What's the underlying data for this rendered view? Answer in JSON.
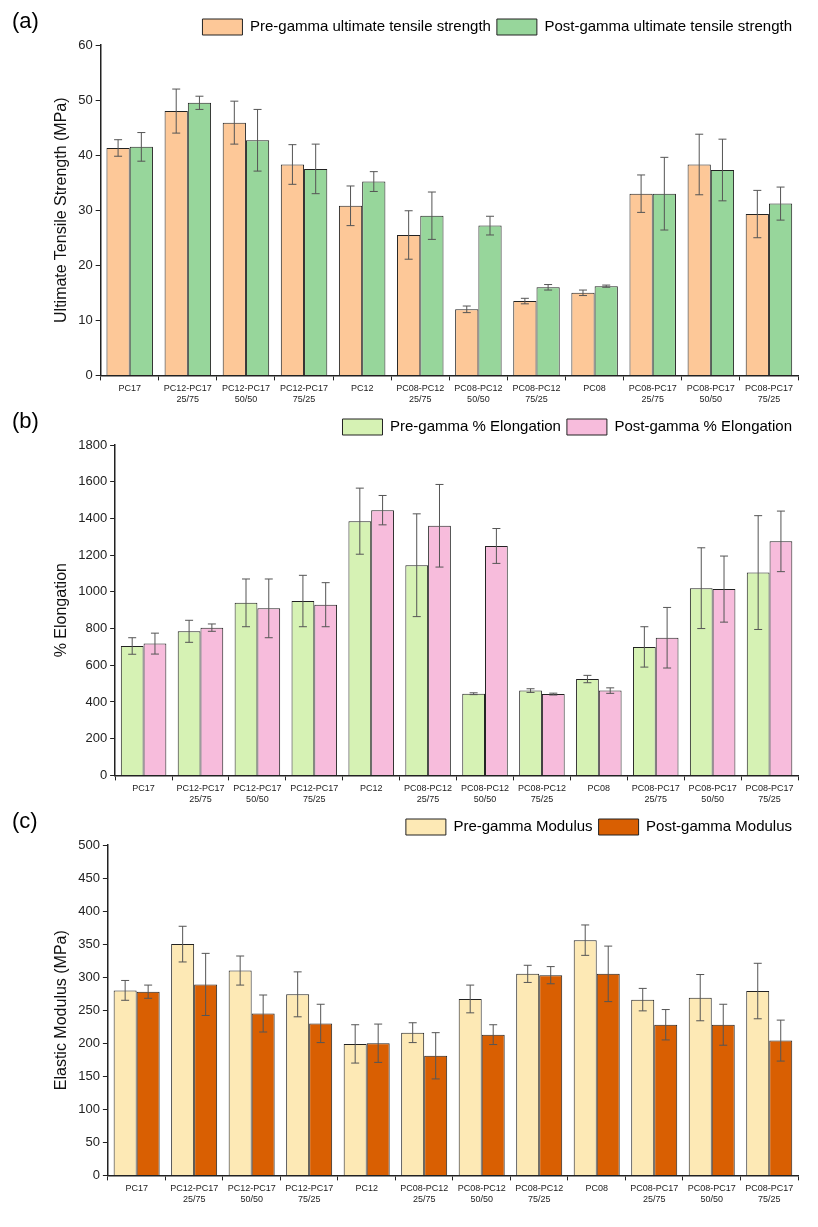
{
  "chart_data": [
    {
      "type": "bar",
      "title": "(a)",
      "ylabel": "Ultimate Tensile Strength (MPa)",
      "categories": [
        "PC17",
        "PC12-PC17\n25/75",
        "PC12-PC17\n50/50",
        "PC12-PC17\n75/25",
        "PC12",
        "PC08-PC12\n25/75",
        "PC08-PC12\n50/50",
        "PC08-PC12\n75/25",
        "PC08",
        "PC08-PC17\n25/75",
        "PC08-PC17\n50/50",
        "PC08-PC17\n75/25"
      ],
      "ylim": [
        0,
        60
      ],
      "yticks": [
        0,
        10,
        20,
        30,
        40,
        50,
        60
      ],
      "legend": "top right",
      "series": [
        {
          "name": "Pre-gamma ultimate tensile strength",
          "color": "#fdc898",
          "values": [
            41.3,
            48,
            45.9,
            38.3,
            30.8,
            25.5,
            12,
            13.5,
            15,
            33,
            38.3,
            29.3
          ],
          "errors": [
            1.5,
            4,
            3.9,
            3.6,
            3.6,
            4.4,
            0.6,
            0.5,
            0.5,
            3.4,
            5.5,
            4.3
          ]
        },
        {
          "name": "Post-gamma ultimate tensile strength",
          "color": "#97d69b",
          "values": [
            41.5,
            49.5,
            42.7,
            37.5,
            35.2,
            29,
            27.2,
            16,
            16.2,
            33,
            37.3,
            31.2
          ],
          "errors": [
            2.6,
            1.2,
            5.6,
            4.5,
            1.8,
            4.3,
            1.7,
            0.5,
            0.2,
            6.6,
            5.6,
            3
          ]
        }
      ]
    },
    {
      "type": "bar",
      "title": "(b)",
      "ylabel": "% Elongation",
      "categories": [
        "PC17",
        "PC12-PC17\n25/75",
        "PC12-PC17\n50/50",
        "PC12-PC17\n75/25",
        "PC12",
        "PC08-PC12\n25/75",
        "PC08-PC12\n50/50",
        "PC08-PC12\n75/25",
        "PC08",
        "PC08-PC17\n25/75",
        "PC08-PC17\n50/50",
        "PC08-PC17\n75/25"
      ],
      "ylim": [
        0,
        1800
      ],
      "yticks": [
        0,
        200,
        400,
        600,
        800,
        1000,
        1200,
        1400,
        1600,
        1800
      ],
      "legend": "top right",
      "series": [
        {
          "name": "Pre-gamma % Elongation",
          "color": "#d6f2b4",
          "values": [
            705,
            785,
            940,
            950,
            1385,
            1145,
            445,
            462,
            525,
            700,
            1020,
            1105
          ],
          "errors": [
            45,
            60,
            130,
            140,
            180,
            280,
            5,
            10,
            20,
            110,
            220,
            310
          ]
        },
        {
          "name": "Post-gamma % Elongation",
          "color": "#f7bcdc",
          "values": [
            718,
            805,
            910,
            930,
            1445,
            1360,
            1250,
            443,
            462,
            750,
            1015,
            1275
          ],
          "errors": [
            57,
            20,
            160,
            120,
            80,
            225,
            95,
            5,
            15,
            165,
            180,
            165
          ]
        }
      ]
    },
    {
      "type": "bar",
      "title": "(c)",
      "ylabel": "Elastic Modulus (MPa)",
      "categories": [
        "PC17",
        "PC12-PC17\n25/75",
        "PC12-PC17\n50/50",
        "PC12-PC17\n75/25",
        "PC12",
        "PC08-PC12\n25/75",
        "PC08-PC12\n50/50",
        "PC08-PC12\n75/25",
        "PC08",
        "PC08-PC17\n25/75",
        "PC08-PC17\n50/50",
        "PC08-PC17\n75/25"
      ],
      "ylim": [
        0,
        500
      ],
      "yticks": [
        0,
        50,
        100,
        150,
        200,
        250,
        300,
        350,
        400,
        450,
        500
      ],
      "legend": "top right",
      "series": [
        {
          "name": "Pre-gamma Modulus",
          "color": "#fde9b5",
          "values": [
            280,
            350,
            310,
            274,
            199,
            216,
            267,
            305,
            356,
            266,
            269,
            279
          ],
          "errors": [
            15,
            27,
            22,
            34,
            29,
            15,
            21,
            13,
            23,
            17,
            35,
            42
          ]
        },
        {
          "name": "Post-gamma Modulus",
          "color": "#d95f02",
          "values": [
            278,
            289,
            245,
            230,
            200,
            181,
            213,
            303,
            305,
            228,
            228,
            204
          ],
          "errors": [
            10,
            47,
            28,
            29,
            29,
            35,
            15,
            13,
            42,
            23,
            31,
            31
          ]
        }
      ]
    }
  ]
}
